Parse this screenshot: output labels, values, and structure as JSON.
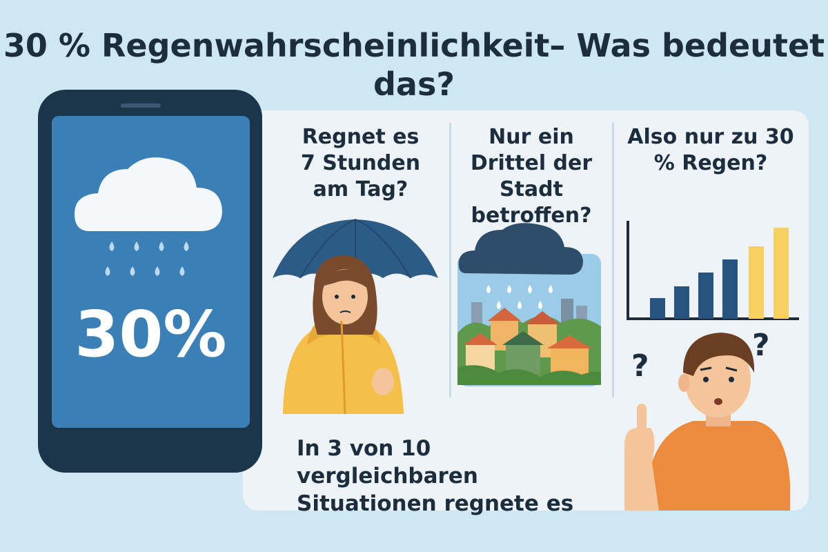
{
  "title": {
    "line1": "30 % Regenwahrscheinlichkeit– Was bedeutet",
    "line2": "das?"
  },
  "phone": {
    "value": "30%",
    "icon": "rain-cloud-icon"
  },
  "questions": [
    {
      "lines": [
        "Regnet es",
        "7 Stunden",
        "am Tag?"
      ]
    },
    {
      "lines": [
        "Nur ein",
        "Drittel der",
        "Stadt betroffen?"
      ]
    },
    {
      "lines": [
        "Also nur zu 30",
        "% Regen?"
      ]
    }
  ],
  "answer": {
    "line1": "In 3 von 10 vergleichbaren",
    "line2": "Situationen regnete es"
  },
  "colors": {
    "background": "#cfe6f3",
    "phone_body": "#1d3548",
    "phone_screen": "#3b7fb7",
    "umbrella": "#2c5b85",
    "raincoat": "#f5c04a",
    "shirt": "#ee8a3c",
    "bar_blue": "#27547f",
    "bar_yellow": "#f7cf63"
  }
}
